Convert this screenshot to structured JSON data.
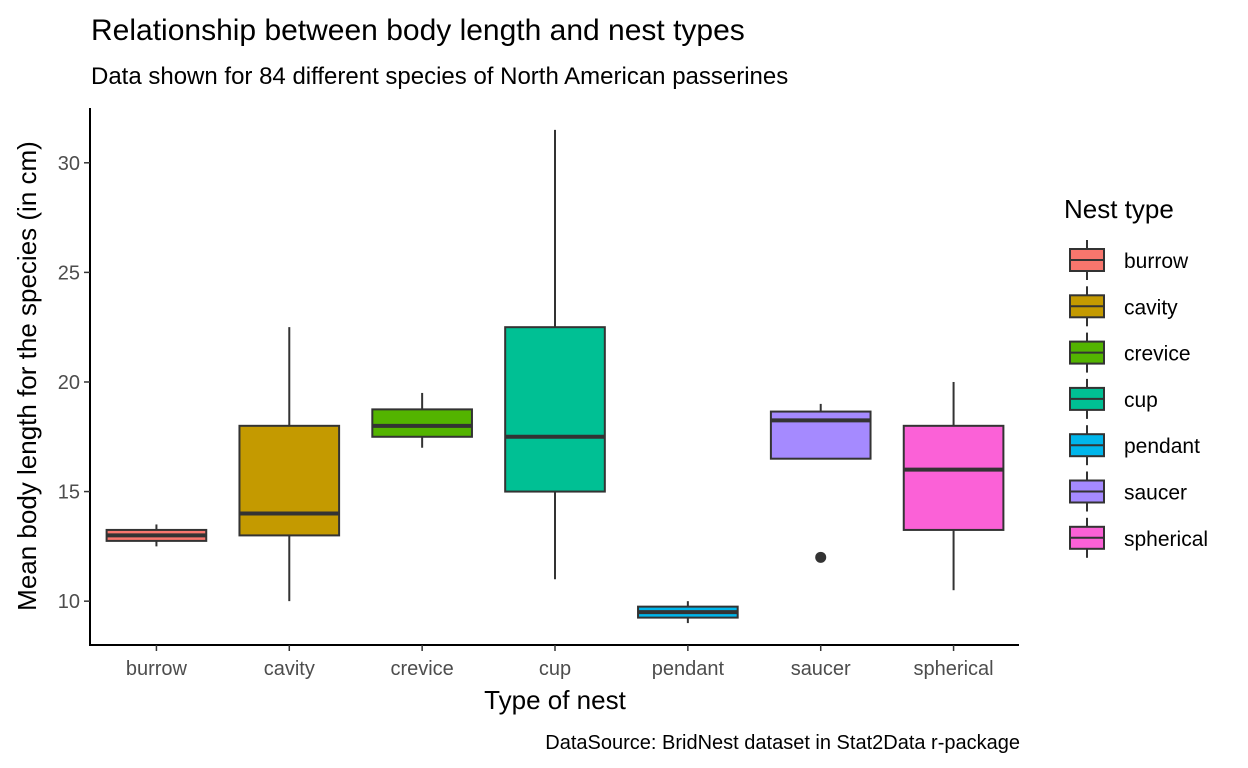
{
  "chart_data": {
    "type": "boxplot",
    "title": "Relationship between body length and nest types",
    "subtitle": "Data shown for 84 different species of North American passerines",
    "xlabel": "Type of nest",
    "ylabel": "Mean body length for the species (in cm)",
    "caption": "DataSource: BridNest dataset in Stat2Data r-package",
    "ylim": [
      8.0,
      32.5
    ],
    "yticks": [
      10,
      15,
      20,
      25,
      30
    ],
    "grid": false,
    "legend": {
      "title": "Nest type",
      "position": "right"
    },
    "categories": [
      "burrow",
      "cavity",
      "crevice",
      "cup",
      "pendant",
      "saucer",
      "spherical"
    ],
    "colors": [
      "#F8766D",
      "#C49A00",
      "#53B400",
      "#00C094",
      "#00B6EB",
      "#A58AFF",
      "#FB61D7"
    ],
    "boxes": [
      {
        "category": "burrow",
        "min": 12.5,
        "q1": 12.75,
        "median": 13.0,
        "q3": 13.25,
        "max": 13.5,
        "outliers": []
      },
      {
        "category": "cavity",
        "min": 10.0,
        "q1": 13.0,
        "median": 14.0,
        "q3": 18.0,
        "max": 22.5,
        "outliers": []
      },
      {
        "category": "crevice",
        "min": 17.0,
        "q1": 17.5,
        "median": 18.0,
        "q3": 18.75,
        "max": 19.5,
        "outliers": []
      },
      {
        "category": "cup",
        "min": 11.0,
        "q1": 15.0,
        "median": 17.5,
        "q3": 22.5,
        "max": 31.5,
        "outliers": []
      },
      {
        "category": "pendant",
        "min": 9.0,
        "q1": 9.25,
        "median": 9.5,
        "q3": 9.75,
        "max": 10.0,
        "outliers": []
      },
      {
        "category": "saucer",
        "min": 16.5,
        "q1": 16.5,
        "median": 18.25,
        "q3": 18.65,
        "max": 19.0,
        "outliers": [
          12.0
        ]
      },
      {
        "category": "spherical",
        "min": 10.5,
        "q1": 13.25,
        "median": 16.0,
        "q3": 18.0,
        "max": 20.0,
        "outliers": []
      }
    ]
  }
}
